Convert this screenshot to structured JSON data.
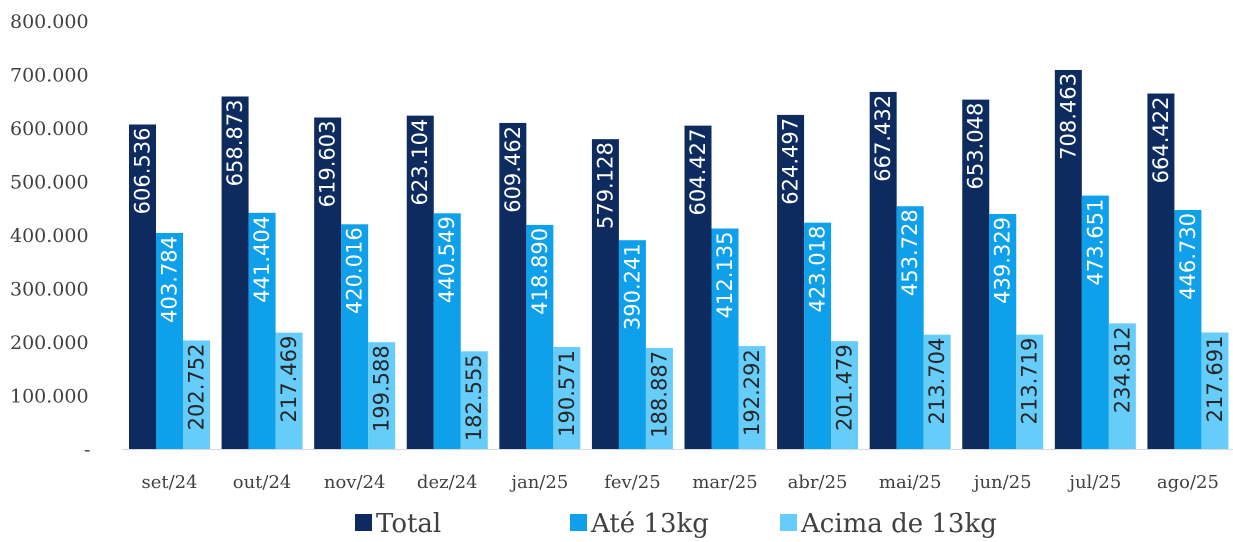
{
  "chart_data": {
    "type": "bar",
    "categories": [
      "set/24",
      "out/24",
      "nov/24",
      "dez/24",
      "jan/25",
      "fev/25",
      "mar/25",
      "abr/25",
      "mai/25",
      "jun/25",
      "jul/25",
      "ago/25"
    ],
    "series": [
      {
        "name": "Total",
        "color": "#0d2b5e",
        "label_color": "#ffffff",
        "values": [
          606536,
          658873,
          619603,
          623104,
          609462,
          579128,
          604427,
          624497,
          667432,
          653048,
          708463,
          664422
        ],
        "labels": [
          "606.536",
          "658.873",
          "619.603",
          "623.104",
          "609.462",
          "579.128",
          "604.427",
          "624.497",
          "667.432",
          "653.048",
          "708.463",
          "664.422"
        ]
      },
      {
        "name": "Até 13kg",
        "color": "#0ea0ea",
        "label_color": "#ffffff",
        "values": [
          403784,
          441404,
          420016,
          440549,
          418890,
          390241,
          412135,
          423018,
          453728,
          439329,
          473651,
          446730
        ],
        "labels": [
          "403.784",
          "441.404",
          "420.016",
          "440.549",
          "418.890",
          "390.241",
          "412.135",
          "423.018",
          "453.728",
          "439.329",
          "473.651",
          "446.730"
        ]
      },
      {
        "name": "Acima de 13kg",
        "color": "#66ccfa",
        "label_color": "#262626",
        "values": [
          202752,
          217469,
          199588,
          182555,
          190571,
          188887,
          192292,
          201479,
          213704,
          213719,
          234812,
          217691
        ],
        "labels": [
          "202.752",
          "217.469",
          "199.588",
          "182.555",
          "190.571",
          "188.887",
          "192.292",
          "201.479",
          "213.704",
          "213.719",
          "234.812",
          "217.691"
        ]
      }
    ],
    "yticks": [
      0,
      100000,
      200000,
      300000,
      400000,
      500000,
      600000,
      700000,
      800000
    ],
    "ytick_labels": [
      "-",
      "100.000",
      "200.000",
      "300.000",
      "400.000",
      "500.000",
      "600.000",
      "700.000",
      "800.000"
    ],
    "ylim": [
      0,
      800000
    ],
    "grid": false,
    "legend_position": "bottom"
  }
}
